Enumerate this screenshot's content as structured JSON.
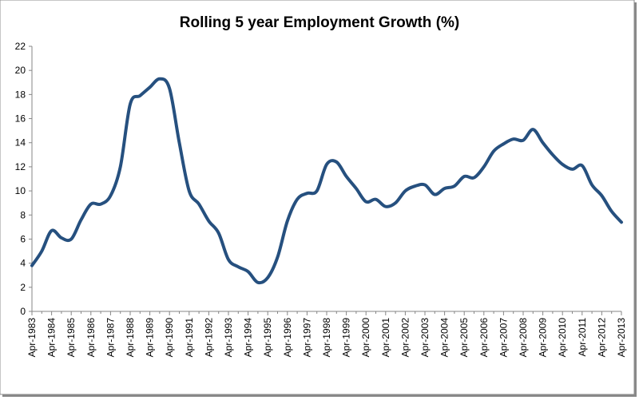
{
  "chart_data": {
    "type": "line",
    "title": "Rolling 5 year Employment Growth (%)",
    "categories": [
      "Apr-1983",
      null,
      "Apr-1984",
      null,
      "Apr-1985",
      null,
      "Apr-1986",
      null,
      "Apr-1987",
      null,
      "Apr-1988",
      null,
      "Apr-1989",
      null,
      "Apr-1990",
      null,
      "Apr-1991",
      null,
      "Apr-1992",
      null,
      "Apr-1993",
      null,
      "Apr-1994",
      null,
      "Apr-1995",
      null,
      "Apr-1996",
      null,
      "Apr-1997",
      null,
      "Apr-1998",
      null,
      "Apr-1999",
      null,
      "Apr-2000",
      null,
      "Apr-2001",
      null,
      "Apr-2002",
      null,
      "Apr-2003",
      null,
      "Apr-2004",
      null,
      "Apr-2005",
      null,
      "Apr-2006",
      null,
      "Apr-2007",
      null,
      "Apr-2008",
      null,
      "Apr-2009",
      null,
      "Apr-2010",
      null,
      "Apr-2011",
      null,
      "Apr-2012",
      null,
      "Apr-2013"
    ],
    "values": [
      3.8,
      5.0,
      6.7,
      6.1,
      6.0,
      7.6,
      8.9,
      8.9,
      9.6,
      12.0,
      17.2,
      17.9,
      18.6,
      19.3,
      18.5,
      14.0,
      10.0,
      8.9,
      7.5,
      6.5,
      4.3,
      3.7,
      3.3,
      2.4,
      2.8,
      4.5,
      7.5,
      9.3,
      9.8,
      10.0,
      12.2,
      12.4,
      11.2,
      10.2,
      9.1,
      9.3,
      8.7,
      9.0,
      10.0,
      10.4,
      10.5,
      9.7,
      10.2,
      10.4,
      11.2,
      11.1,
      12.0,
      13.3,
      13.9,
      14.3,
      14.2,
      15.1,
      14.0,
      13.0,
      12.2,
      11.8,
      12.1,
      10.5,
      9.6,
      8.3,
      7.4
    ],
    "color": "#26507f",
    "ylim": [
      0,
      22
    ],
    "yticks": [
      0,
      2,
      4,
      6,
      8,
      10,
      12,
      14,
      16,
      18,
      20,
      22
    ],
    "grid": false
  }
}
